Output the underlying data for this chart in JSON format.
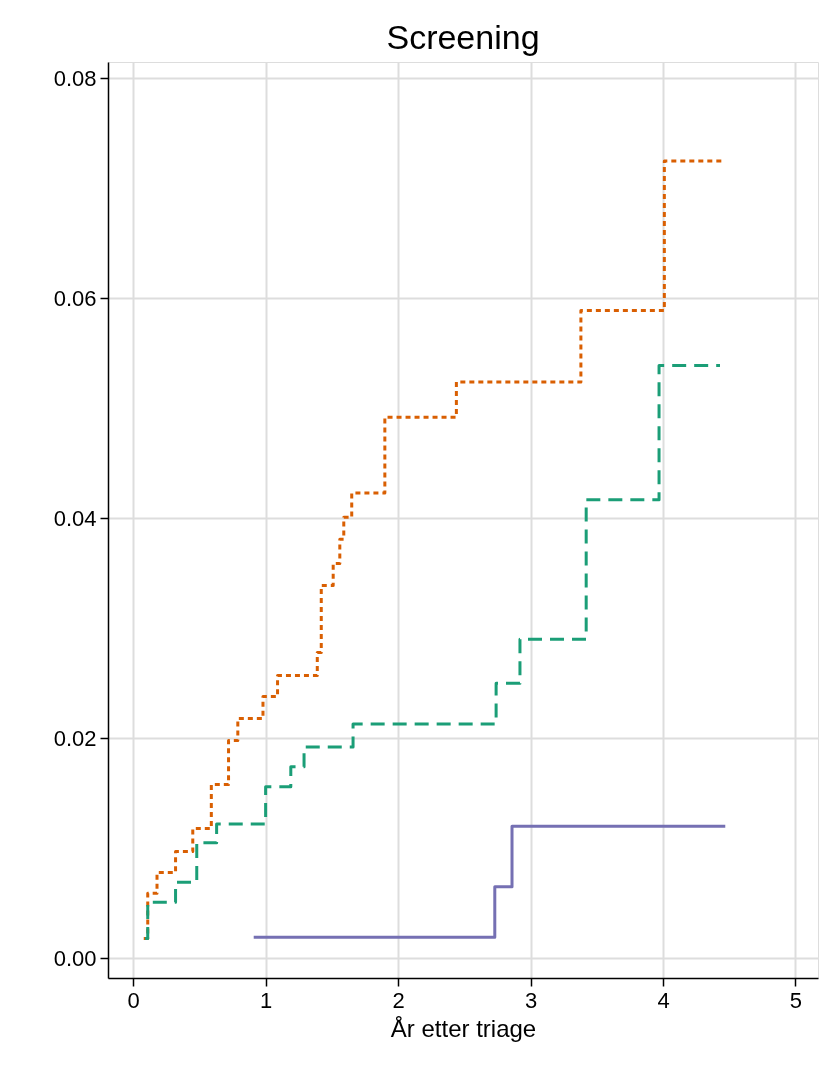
{
  "chart_data": {
    "type": "step",
    "title": "Screening",
    "xlabel": "År etter triage",
    "xlim": [
      -0.19,
      5.17
    ],
    "ylim": [
      -0.0018,
      0.0815
    ],
    "xticks": [
      0,
      1,
      2,
      3,
      4,
      5
    ],
    "yticks": [
      {
        "value": 0,
        "label": "0.00"
      },
      0.02,
      0.04,
      0.06,
      0.08
    ],
    "grid": true,
    "series": [
      {
        "color": "#d95f02",
        "line_style": "dotted",
        "x": [
          0.08,
          0.11,
          0.18,
          0.32,
          0.45,
          0.59,
          0.72,
          0.79,
          0.98,
          1.09,
          1.39,
          1.42,
          1.51,
          1.56,
          1.59,
          1.65,
          1.9,
          2.44,
          3.38,
          4.01,
          4.47
        ],
        "values": [
          0.0018,
          0.0059,
          0.0078,
          0.0097,
          0.0118,
          0.0158,
          0.0198,
          0.0218,
          0.0238,
          0.0257,
          0.0278,
          0.0339,
          0.0359,
          0.0381,
          0.0401,
          0.0423,
          0.0492,
          0.0524,
          0.0589,
          0.0725,
          0.0725
        ]
      },
      {
        "color": "#1b9e77",
        "line_style": "dashed",
        "x": [
          0.09,
          0.11,
          0.32,
          0.48,
          0.63,
          1.0,
          1.19,
          1.29,
          1.66,
          2.74,
          2.92,
          3.42,
          3.97,
          4.43
        ],
        "values": [
          0.0018,
          0.0051,
          0.0069,
          0.0105,
          0.0122,
          0.0156,
          0.0174,
          0.0192,
          0.0213,
          0.025,
          0.029,
          0.0417,
          0.0539,
          0.0539
        ]
      },
      {
        "color": "#7570b3",
        "line_style": "solid",
        "x": [
          0.91,
          2.73,
          2.86,
          4.47
        ],
        "values": [
          0.0019,
          0.0065,
          0.012,
          0.012
        ]
      }
    ]
  }
}
